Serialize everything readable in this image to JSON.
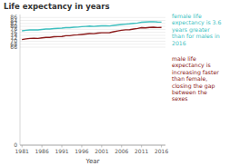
{
  "chart_data": {
    "type": "line",
    "title": "Life expectancy in years",
    "x_label": "Year",
    "x": [
      1981,
      1982,
      1983,
      1984,
      1985,
      1986,
      1987,
      1988,
      1989,
      1990,
      1991,
      1992,
      1993,
      1994,
      1995,
      1996,
      1997,
      1998,
      1999,
      2000,
      2001,
      2002,
      2003,
      2004,
      2005,
      2006,
      2007,
      2008,
      2009,
      2010,
      2011,
      2012,
      2013,
      2014,
      2015,
      2016
    ],
    "series": [
      {
        "color": "#3dbfbf",
        "values": [
          77.0,
          77.4,
          77.6,
          77.7,
          77.6,
          77.9,
          78.2,
          78.2,
          78.5,
          78.7,
          78.8,
          79.1,
          79.1,
          79.4,
          79.5,
          79.8,
          80.0,
          80.2,
          80.0,
          80.2,
          80.4,
          80.4,
          80.3,
          80.7,
          81.0,
          81.3,
          81.5,
          81.7,
          82.0,
          82.3,
          82.8,
          83.0,
          83.1,
          83.2,
          83.0,
          82.9
        ]
      },
      {
        "color": "#8b1a1a",
        "values": [
          71.1,
          71.6,
          71.9,
          72.0,
          71.9,
          72.3,
          72.6,
          72.6,
          73.0,
          73.1,
          73.2,
          73.7,
          73.7,
          74.2,
          74.3,
          74.6,
          74.9,
          75.2,
          75.1,
          75.5,
          75.7,
          75.7,
          75.8,
          76.4,
          76.9,
          77.4,
          77.7,
          77.8,
          78.2,
          78.6,
          79.1,
          79.0,
          79.3,
          79.4,
          79.2,
          79.3
        ]
      }
    ],
    "annotations": [
      {
        "text": "female life\nexpectancy is 3.6\nyears greater\nthan for males in\n2016",
        "color": "#3dbfbf"
      },
      {
        "text": "male life\nexpectancy is\nincreasing faster\nthan female,\nclosing the gap\nbetween the\nsexes",
        "color": "#8b1a1a"
      }
    ],
    "xlim": [
      1980.5,
      2017
    ],
    "xticks": [
      1981,
      1986,
      1991,
      1996,
      2001,
      2006,
      2011,
      2016
    ],
    "ylim": [
      0,
      88
    ],
    "yticks": [
      0,
      66,
      68,
      70,
      72,
      74,
      76,
      78,
      80,
      82,
      84,
      86
    ],
    "grid": true
  }
}
